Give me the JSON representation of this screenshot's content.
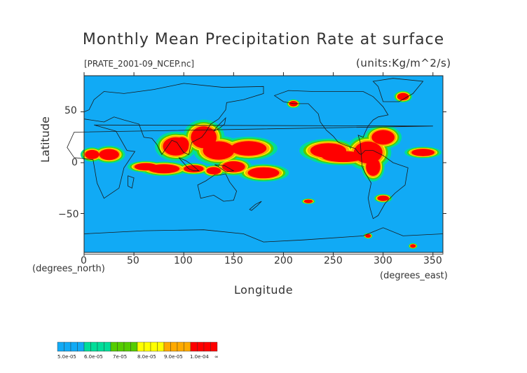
{
  "title": "Monthly Mean Precipitation Rate at surface",
  "subtitle": "[PRATE_2001-09_NCEP.nc]",
  "units": "(units:Kg/m^2/s)",
  "x_axis": {
    "label": "Longitude",
    "unit_label": "(degrees_east)",
    "ticks": [
      "0",
      "50",
      "100",
      "150",
      "200",
      "250",
      "300",
      "350"
    ]
  },
  "y_axis": {
    "label": "Latitude",
    "unit_label": "(degrees_north)",
    "ticks": [
      "50",
      "0",
      "−50"
    ]
  },
  "colors": {
    "background": "#11aaf5",
    "coast": "#1a1a1a",
    "level1": "#00dd99",
    "level2": "#22ee55",
    "level3": "#55cc00",
    "level4": "#ffff00",
    "level5": "#ffaa00",
    "level6": "#ff0000"
  },
  "legend": {
    "bins": [
      {
        "color": "#11aaf5"
      },
      {
        "color": "#00dd99"
      },
      {
        "color": "#55cc00"
      },
      {
        "color": "#ffff00"
      },
      {
        "color": "#ffaa00"
      },
      {
        "color": "#ff0000"
      }
    ],
    "labels": [
      "5.0e-05",
      "6.0e-05",
      "7e-05",
      "8.0e-05",
      "9.0e-05",
      "1.0e-04",
      "∞"
    ]
  }
}
